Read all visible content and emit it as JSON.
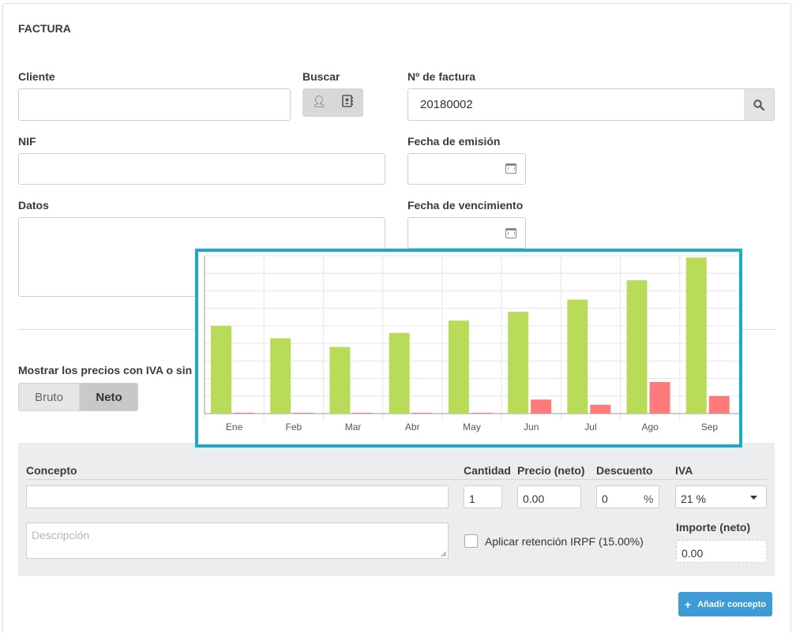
{
  "form": {
    "title": "FACTURA",
    "cliente_label": "Cliente",
    "cliente_value": "",
    "buscar_label": "Buscar",
    "factura_label": "Nº de factura",
    "factura_value": "20180002",
    "nif_label": "NIF",
    "nif_value": "",
    "emision_label": "Fecha de emisión",
    "emision_value": "",
    "datos_label": "Datos",
    "datos_value": "",
    "vencimiento_label": "Fecha de vencimiento",
    "vencimiento_value": "",
    "iva_toggle_label": "Mostrar los precios con IVA o sin IVA.",
    "toggle_bruto": "Bruto",
    "toggle_neto": "Neto"
  },
  "concept": {
    "concepto_label": "Concepto",
    "cantidad_label": "Cantidad",
    "precio_label": "Precio (neto)",
    "descuento_label": "Descuento",
    "iva_label": "IVA",
    "cantidad_value": "1",
    "precio_value": "0.00",
    "descuento_value": "0",
    "descuento_unit": "%",
    "iva_value": "21 %",
    "descripcion_placeholder": "Descripción",
    "irpf_label": "Aplicar retención IRPF (15.00%)",
    "importe_label": "Importe (neto)",
    "importe_value": "0.00",
    "add_button_label": "Añadir concepto"
  },
  "colors": {
    "accent": "#1aacc7",
    "button_blue": "#3d9bd6",
    "bar_green": "#b8dc5a",
    "bar_red": "#ff7b7b"
  },
  "chart_data": {
    "type": "bar",
    "categories": [
      "Ene",
      "Feb",
      "Mar",
      "Abr",
      "May",
      "Jun",
      "Jul",
      "Ago",
      "Sep"
    ],
    "series": [
      {
        "name": "green",
        "values": [
          50,
          43,
          38,
          46,
          53,
          58,
          65,
          76,
          89
        ]
      },
      {
        "name": "red",
        "values": [
          0,
          0,
          0,
          0,
          0,
          8,
          5,
          18,
          10
        ]
      }
    ],
    "ylim": [
      0,
      90
    ],
    "grid": true
  }
}
